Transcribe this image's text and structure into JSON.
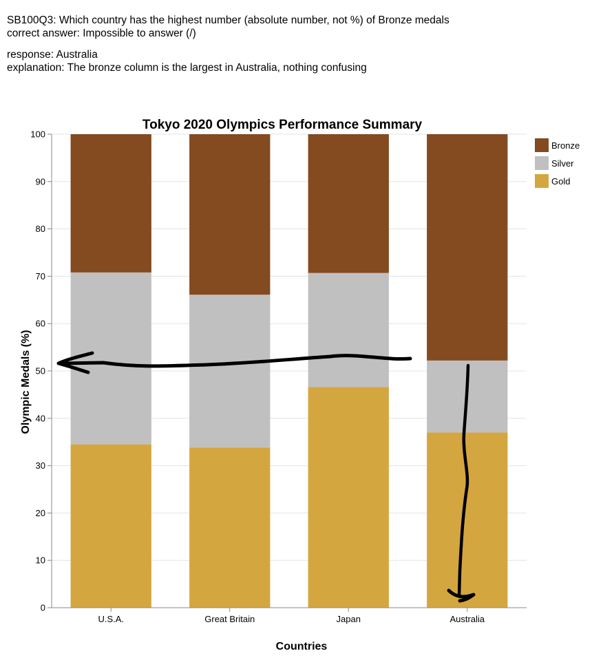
{
  "header": {
    "question": "SB100Q3: Which country has the highest number (absolute number, not %)  of Bronze medals",
    "correct_answer": "correct answer: Impossible to answer (/)",
    "response": "response: Australia",
    "explanation": "explanation: The bronze column is the largest in Australia, nothing confusing"
  },
  "chart_data": {
    "type": "bar",
    "stacked": true,
    "title": "Tokyo 2020 Olympics Performance Summary",
    "xlabel": "Countries",
    "ylabel": "Olympic Medals (%)",
    "ylim": [
      0,
      100
    ],
    "yticks": [
      0,
      10,
      20,
      30,
      40,
      50,
      60,
      70,
      80,
      90,
      100
    ],
    "grid": true,
    "legend_position": "top-right",
    "categories": [
      "U.S.A.",
      "Great Britain",
      "Japan",
      "Australia"
    ],
    "series": [
      {
        "name": "Gold",
        "color": "#d4a640",
        "values": [
          34.5,
          33.8,
          46.6,
          37.0
        ]
      },
      {
        "name": "Silver",
        "color": "#c0c0c0",
        "values": [
          36.3,
          32.3,
          24.1,
          15.2
        ]
      },
      {
        "name": "Bronze",
        "color": "#844a20",
        "values": [
          29.2,
          33.9,
          29.3,
          47.8
        ]
      }
    ],
    "legend_order": [
      "Bronze",
      "Silver",
      "Gold"
    ]
  }
}
